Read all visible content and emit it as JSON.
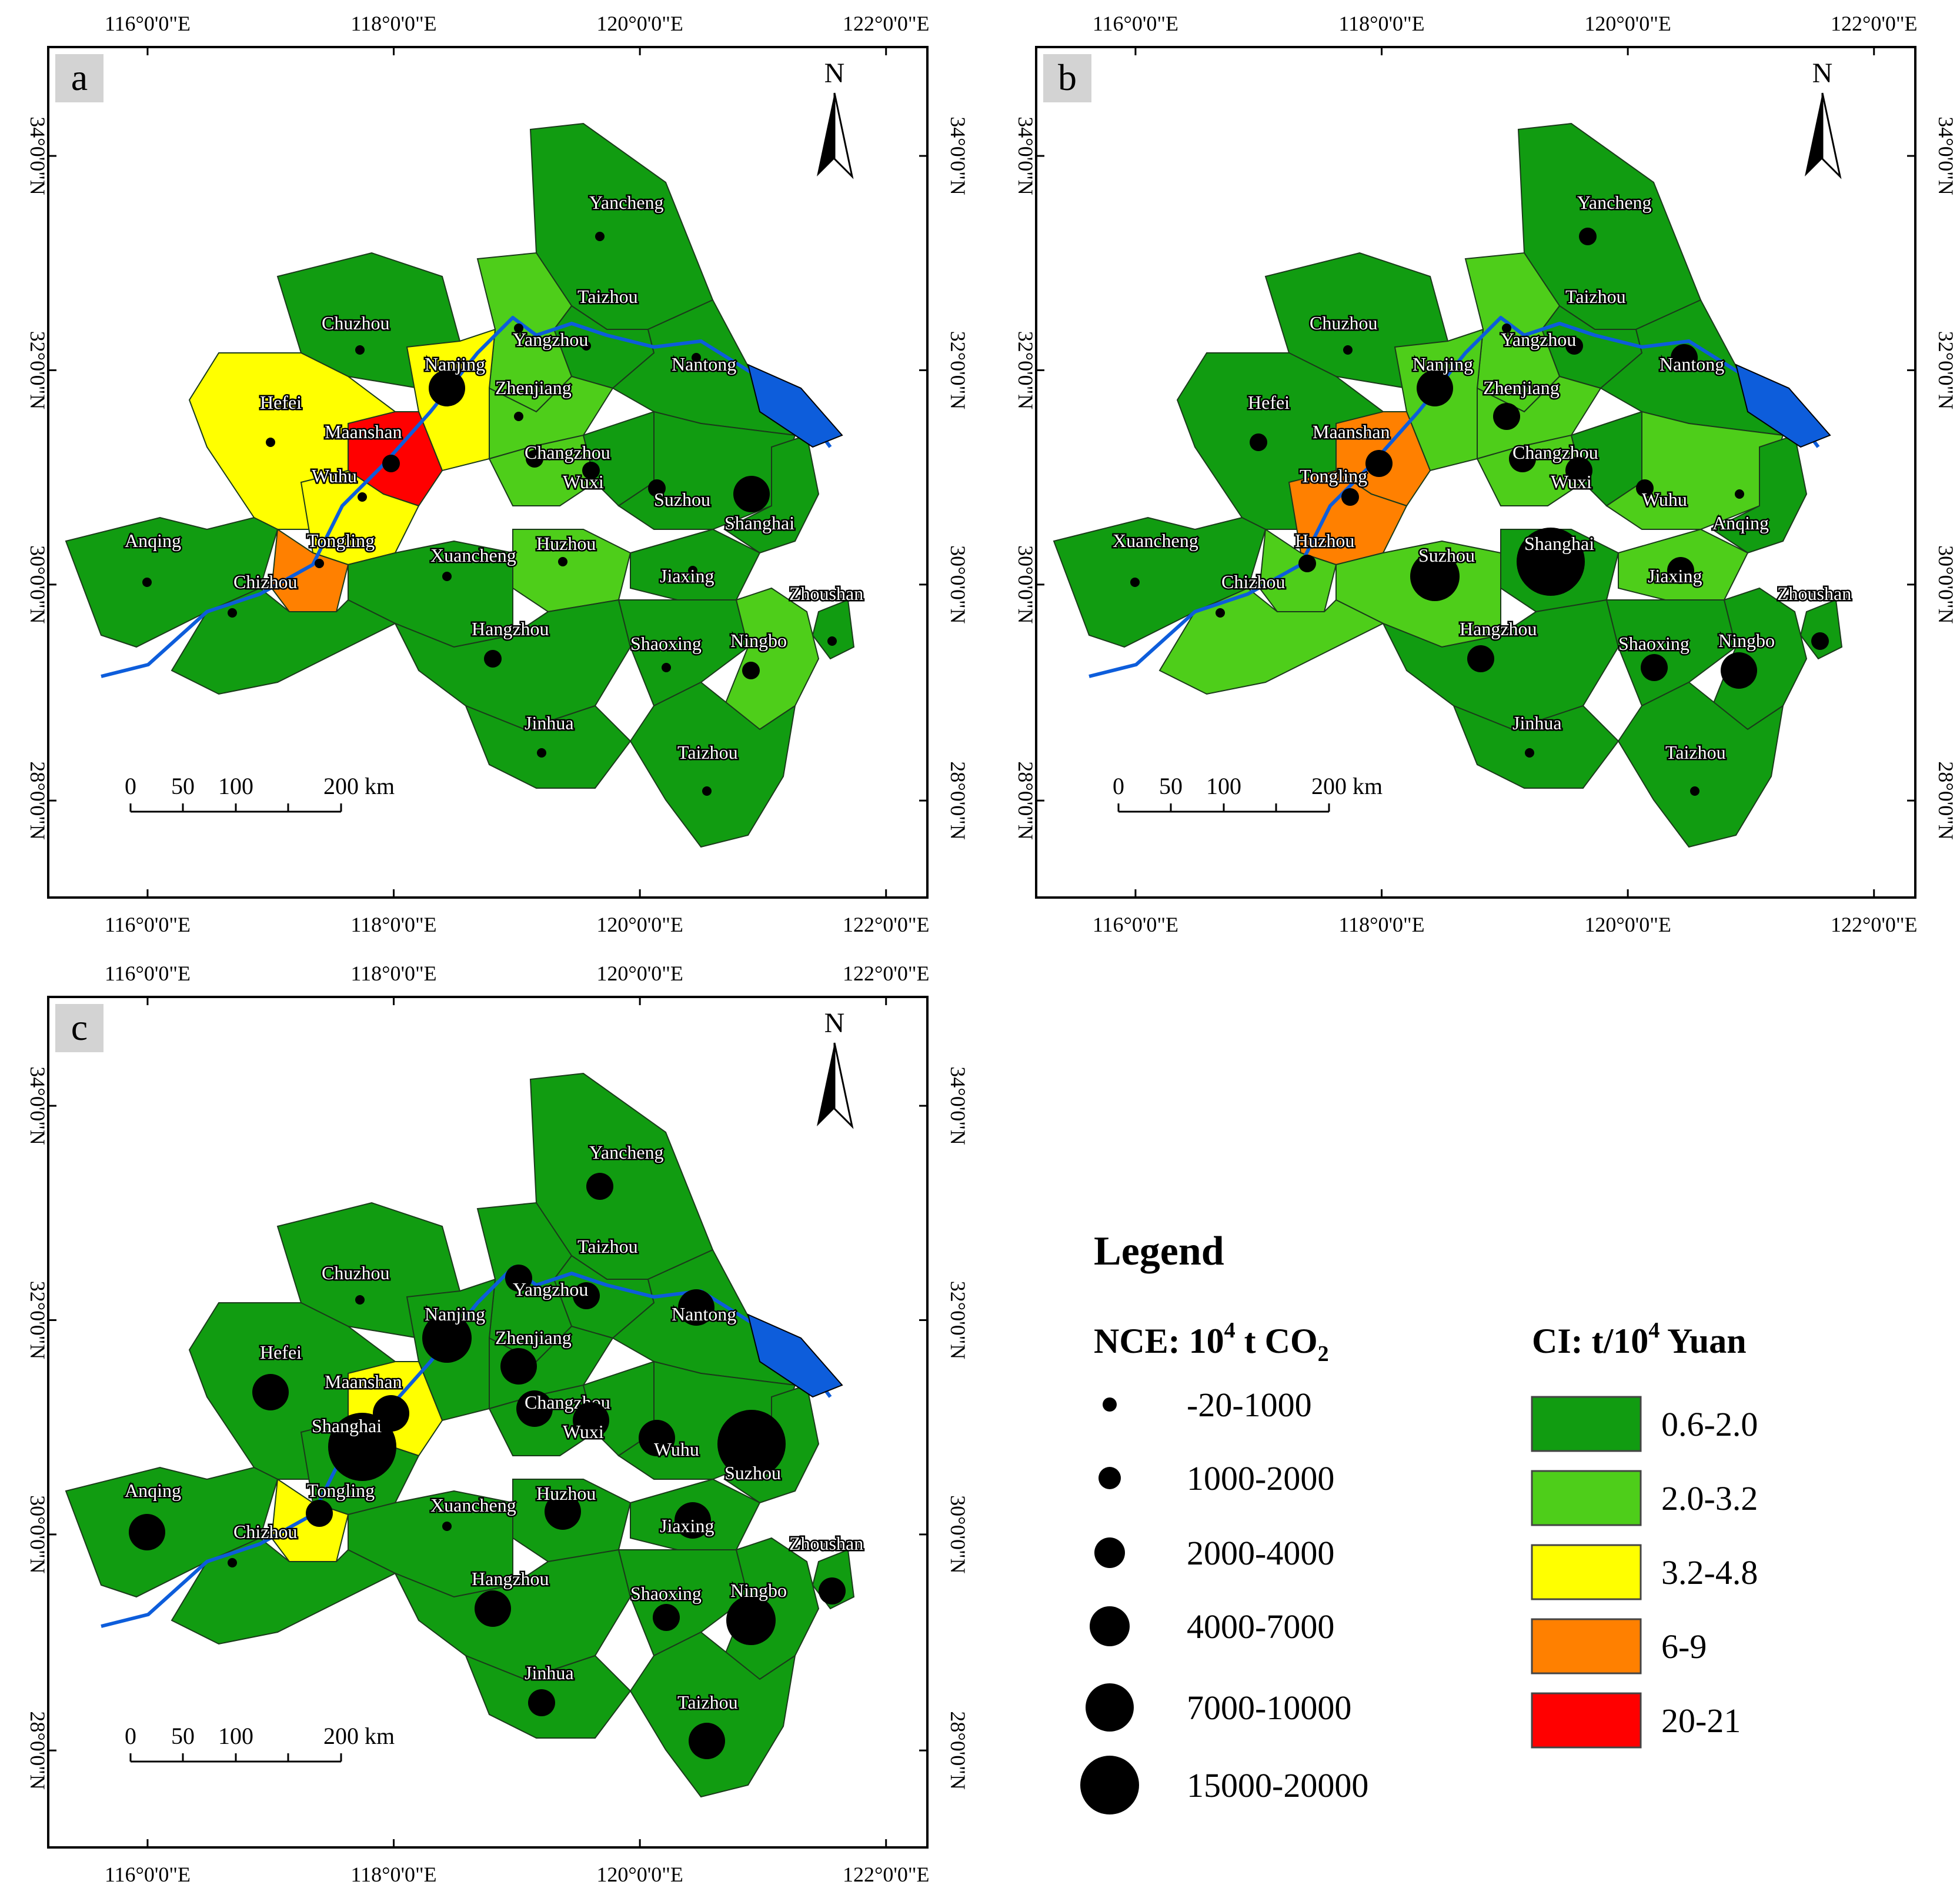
{
  "panels": [
    {
      "letter": "a",
      "cities": [
        {
          "name": "Yancheng",
          "ci": "0.6-2.0",
          "nce": "-20-1000"
        },
        {
          "name": "Taizhou",
          "ci": "0.6-2.0",
          "nce": "-20-1000"
        },
        {
          "name": "Chuzhou",
          "ci": "0.6-2.0",
          "nce": "-20-1000"
        },
        {
          "name": "Yangzhou",
          "ci": "2.0-3.2",
          "nce": "-20-1000"
        },
        {
          "name": "Nantong",
          "ci": "0.6-2.0",
          "nce": "-20-1000"
        },
        {
          "name": "Nanjing",
          "ci": "3.2-4.8",
          "nce": "4000-7000"
        },
        {
          "name": "Zhenjiang",
          "ci": "2.0-3.2",
          "nce": "-20-1000"
        },
        {
          "name": "Hefei",
          "ci": "3.2-4.8",
          "nce": "-20-1000"
        },
        {
          "name": "Maanshan",
          "ci": "20-21",
          "nce": "1000-2000"
        },
        {
          "name": "Changzhou",
          "ci": "2.0-3.2",
          "nce": "1000-2000"
        },
        {
          "name": "Wuxi",
          "ci": "0.6-2.0",
          "nce": "1000-2000"
        },
        {
          "name": "Suzhou",
          "ci": "0.6-2.0",
          "nce": "1000-2000"
        },
        {
          "name": "Shanghai",
          "ci": "0.6-2.0",
          "nce": "4000-7000"
        },
        {
          "name": "Wuhu",
          "ci": "3.2-4.8",
          "nce": "-20-1000"
        },
        {
          "name": "Anqing",
          "ci": "0.6-2.0",
          "nce": "-20-1000"
        },
        {
          "name": "Tongling",
          "ci": "6-9",
          "nce": "-20-1000"
        },
        {
          "name": "Xuancheng",
          "ci": "0.6-2.0",
          "nce": "-20-1000"
        },
        {
          "name": "Huzhou",
          "ci": "2.0-3.2",
          "nce": "-20-1000"
        },
        {
          "name": "Chizhou",
          "ci": "0.6-2.0",
          "nce": "-20-1000"
        },
        {
          "name": "Jiaxing",
          "ci": "0.6-2.0",
          "nce": "-20-1000"
        },
        {
          "name": "Zhoushan",
          "ci": "0.6-2.0",
          "nce": "-20-1000"
        },
        {
          "name": "Hangzhou",
          "ci": "0.6-2.0",
          "nce": "1000-2000"
        },
        {
          "name": "Shaoxing",
          "ci": "0.6-2.0",
          "nce": "-20-1000"
        },
        {
          "name": "Ningbo",
          "ci": "2.0-3.2",
          "nce": "1000-2000"
        },
        {
          "name": "Jinhua",
          "ci": "0.6-2.0",
          "nce": "-20-1000"
        },
        {
          "name": "Taizhou",
          "ci": "0.6-2.0",
          "nce": "-20-1000"
        }
      ]
    },
    {
      "letter": "b",
      "cities": [
        {
          "name": "Yancheng",
          "ci": "0.6-2.0",
          "nce": "1000-2000"
        },
        {
          "name": "Taizhou",
          "ci": "0.6-2.0",
          "nce": "1000-2000"
        },
        {
          "name": "Chuzhou",
          "ci": "0.6-2.0",
          "nce": "-20-1000"
        },
        {
          "name": "Yangzhou",
          "ci": "2.0-3.2",
          "nce": "-20-1000"
        },
        {
          "name": "Nantong",
          "ci": "0.6-2.0",
          "nce": "2000-4000"
        },
        {
          "name": "Nanjing",
          "ci": "2.0-3.2",
          "nce": "4000-7000"
        },
        {
          "name": "Zhenjiang",
          "ci": "2.0-3.2",
          "nce": "2000-4000"
        },
        {
          "name": "Hefei",
          "ci": "0.6-2.0",
          "nce": "1000-2000"
        },
        {
          "name": "Maanshan",
          "ci": "6-9",
          "nce": "2000-4000"
        },
        {
          "name": "Changzhou",
          "ci": "2.0-3.2",
          "nce": "2000-4000"
        },
        {
          "name": "Wuxi",
          "ci": "0.6-2.0",
          "nce": "2000-4000"
        },
        {
          "name": "Wuhu",
          "ci": "2.0-3.2",
          "nce": "1000-2000"
        },
        {
          "name": "Anqing",
          "ci": "0.6-2.0",
          "nce": "-20-1000"
        },
        {
          "name": "Tongling",
          "ci": "6-9",
          "nce": "1000-2000"
        },
        {
          "name": "Xuancheng",
          "ci": "0.6-2.0",
          "nce": "-20-1000"
        },
        {
          "name": "Huzhou",
          "ci": "2.0-3.2",
          "nce": "1000-2000"
        },
        {
          "name": "Suzhou",
          "ci": "2.0-3.2",
          "nce": "7000-10000"
        },
        {
          "name": "Shanghai",
          "ci": "0.6-2.0",
          "nce": "15000-20000"
        },
        {
          "name": "Chizhou",
          "ci": "2.0-3.2",
          "nce": "-20-1000"
        },
        {
          "name": "Jiaxing",
          "ci": "2.0-3.2",
          "nce": "2000-4000"
        },
        {
          "name": "Zhoushan",
          "ci": "0.6-2.0",
          "nce": "1000-2000"
        },
        {
          "name": "Hangzhou",
          "ci": "0.6-2.0",
          "nce": "2000-4000"
        },
        {
          "name": "Shaoxing",
          "ci": "0.6-2.0",
          "nce": "2000-4000"
        },
        {
          "name": "Ningbo",
          "ci": "0.6-2.0",
          "nce": "4000-7000"
        },
        {
          "name": "Jinhua",
          "ci": "0.6-2.0",
          "nce": "-20-1000"
        },
        {
          "name": "Taizhou",
          "ci": "0.6-2.0",
          "nce": "-20-1000"
        }
      ]
    },
    {
      "letter": "c",
      "cities": [
        {
          "name": "Yancheng",
          "ci": "0.6-2.0",
          "nce": "2000-4000"
        },
        {
          "name": "Taizhou",
          "ci": "0.6-2.0",
          "nce": "2000-4000"
        },
        {
          "name": "Chuzhou",
          "ci": "0.6-2.0",
          "nce": "-20-1000"
        },
        {
          "name": "Yangzhou",
          "ci": "0.6-2.0",
          "nce": "2000-4000"
        },
        {
          "name": "Nantong",
          "ci": "0.6-2.0",
          "nce": "4000-7000"
        },
        {
          "name": "Nanjing",
          "ci": "0.6-2.0",
          "nce": "7000-10000"
        },
        {
          "name": "Zhenjiang",
          "ci": "0.6-2.0",
          "nce": "4000-7000"
        },
        {
          "name": "Hefei",
          "ci": "0.6-2.0",
          "nce": "4000-7000"
        },
        {
          "name": "Maanshan",
          "ci": "3.2-4.8",
          "nce": "4000-7000"
        },
        {
          "name": "Changzhou",
          "ci": "0.6-2.0",
          "nce": "4000-7000"
        },
        {
          "name": "Wuxi",
          "ci": "0.6-2.0",
          "nce": "4000-7000"
        },
        {
          "name": "Wuhu",
          "ci": "0.6-2.0",
          "nce": "4000-7000"
        },
        {
          "name": "Suzhou",
          "ci": "0.6-2.0",
          "nce": "15000-20000"
        },
        {
          "name": "Shanghai",
          "ci": "0.6-2.0",
          "nce": "15000-20000"
        },
        {
          "name": "Anqing",
          "ci": "0.6-2.0",
          "nce": "4000-7000"
        },
        {
          "name": "Tongling",
          "ci": "3.2-4.8",
          "nce": "2000-4000"
        },
        {
          "name": "Xuancheng",
          "ci": "0.6-2.0",
          "nce": "-20-1000"
        },
        {
          "name": "Huzhou",
          "ci": "0.6-2.0",
          "nce": "4000-7000"
        },
        {
          "name": "Chizhou",
          "ci": "0.6-2.0",
          "nce": "-20-1000"
        },
        {
          "name": "Jiaxing",
          "ci": "0.6-2.0",
          "nce": "4000-7000"
        },
        {
          "name": "Zhoushan",
          "ci": "0.6-2.0",
          "nce": "2000-4000"
        },
        {
          "name": "Hangzhou",
          "ci": "0.6-2.0",
          "nce": "4000-7000"
        },
        {
          "name": "Shaoxing",
          "ci": "0.6-2.0",
          "nce": "2000-4000"
        },
        {
          "name": "Ningbo",
          "ci": "0.6-2.0",
          "nce": "7000-10000"
        },
        {
          "name": "Jinhua",
          "ci": "0.6-2.0",
          "nce": "2000-4000"
        },
        {
          "name": "Taizhou",
          "ci": "0.6-2.0",
          "nce": "4000-7000"
        }
      ]
    }
  ],
  "axes": {
    "lon_labels": [
      "116°0'0\"E",
      "118°0'0\"E",
      "120°0'0\"E",
      "122°0'0\"E"
    ],
    "lat_labels": [
      "34°0'0\"N",
      "32°0'0\"N",
      "30°0'0\"N",
      "28°0'0\"N"
    ]
  },
  "north_label": "N",
  "scale_bar": {
    "labels": [
      "0",
      "50",
      "100",
      "200 km"
    ]
  },
  "legend": {
    "title": "Legend",
    "nce_title": "NCE: 10",
    "nce_sup": "4",
    "nce_unit": " t CO",
    "nce_sub": "2",
    "ci_title": "CI: t/10",
    "ci_sup": "4",
    "ci_unit": " Yuan",
    "nce_classes": [
      "-20-1000",
      "1000-2000",
      "2000-4000",
      "4000-7000",
      "7000-10000",
      "15000-20000"
    ],
    "ci_classes": [
      {
        "label": "0.6-2.0",
        "color": "#119c11"
      },
      {
        "label": "2.0-3.2",
        "color": "#4ece1a"
      },
      {
        "label": "3.2-4.8",
        "color": "#ffff00"
      },
      {
        "label": "6-9",
        "color": "#ff8000"
      },
      {
        "label": "20-21",
        "color": "#ff0000"
      }
    ]
  },
  "colors": {
    "river": "#0d5ddb",
    "background": "#ffffff"
  }
}
